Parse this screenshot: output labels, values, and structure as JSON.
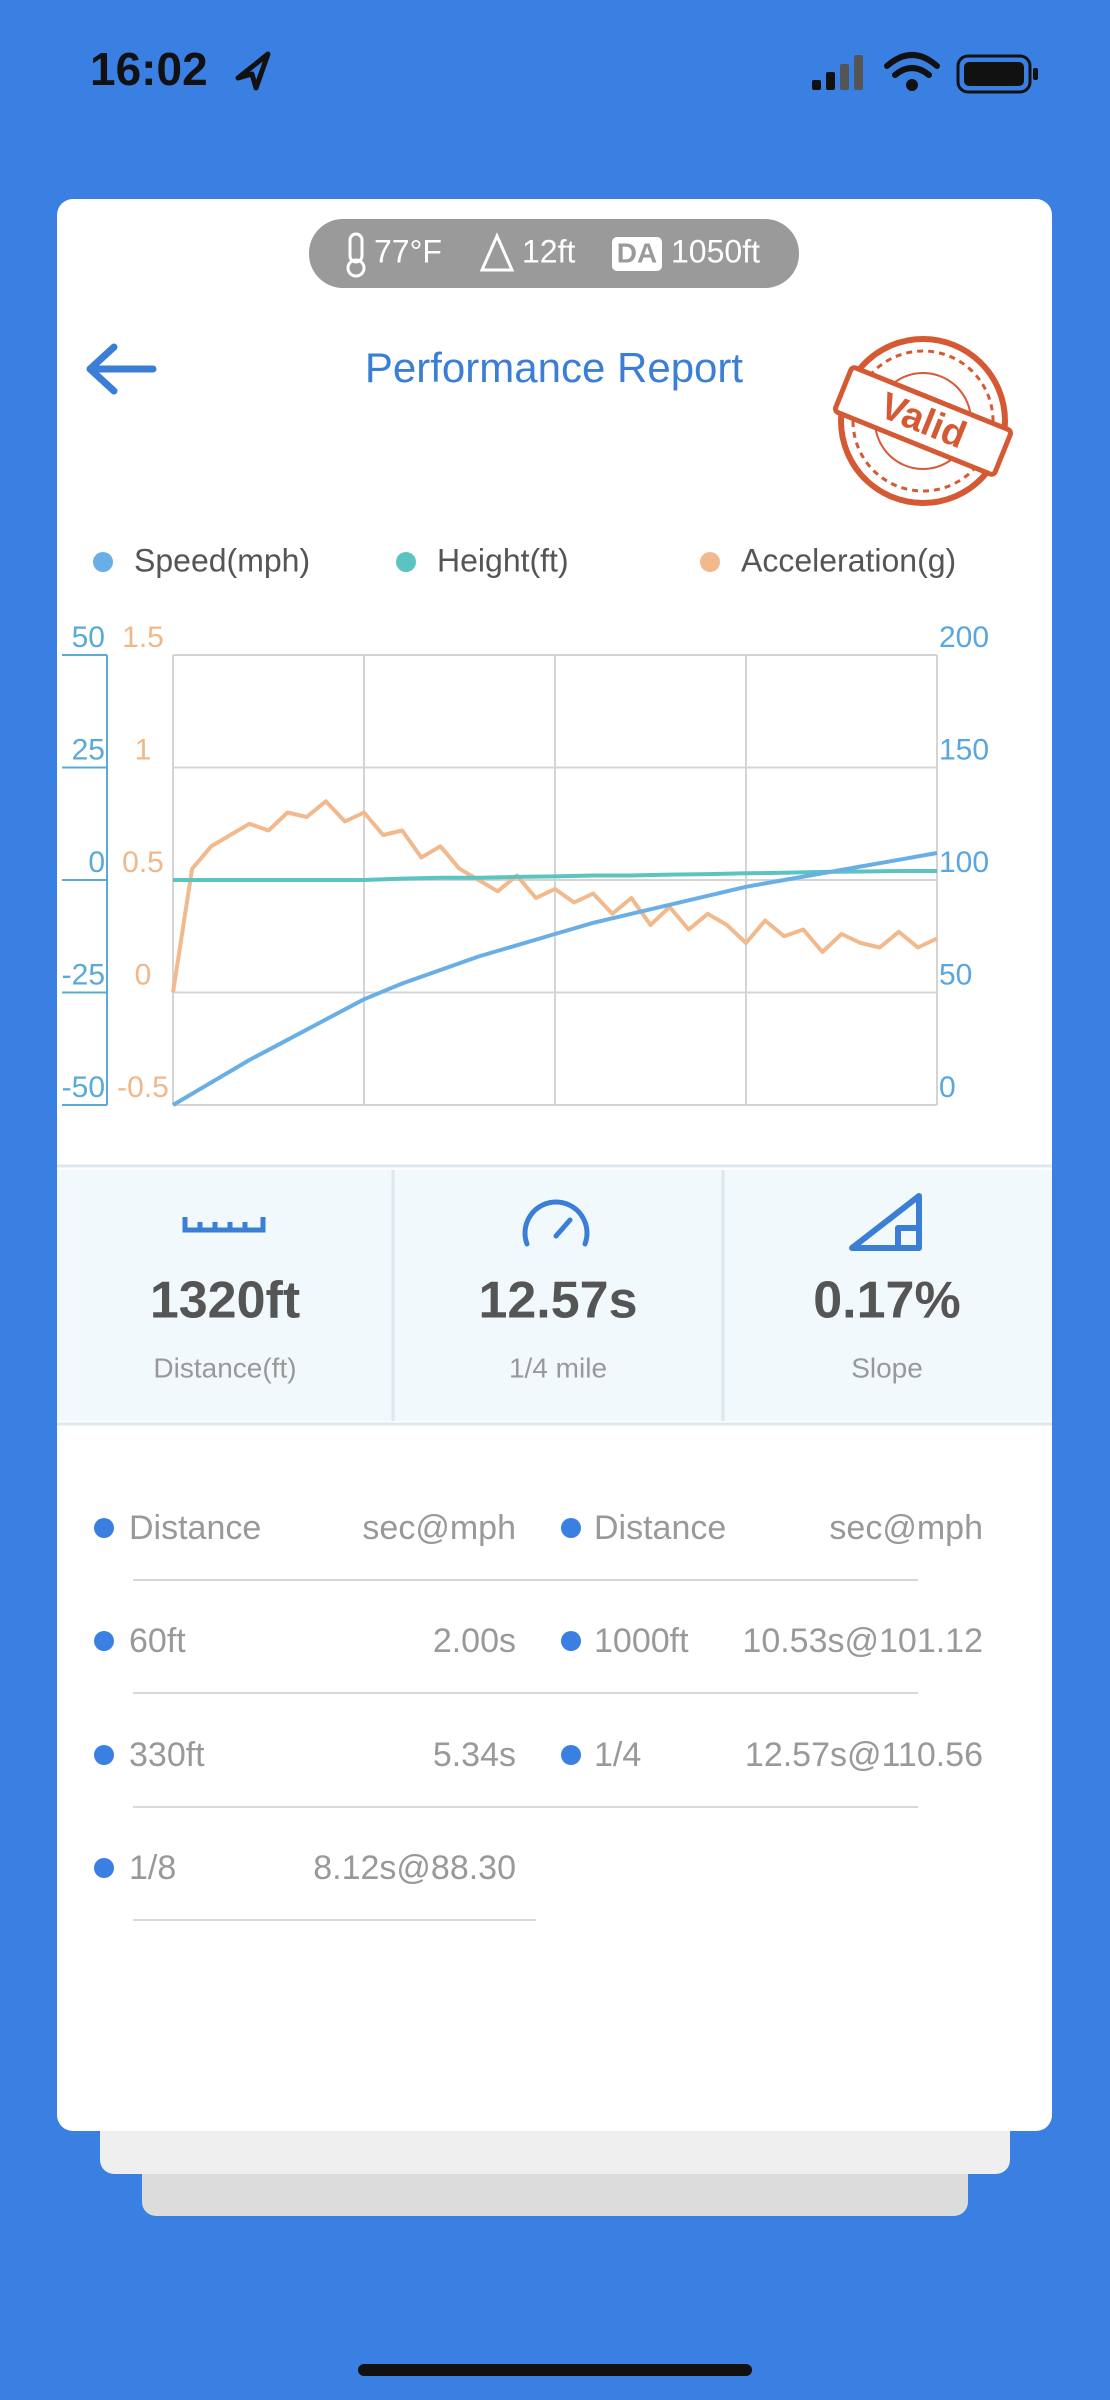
{
  "status_bar": {
    "time": "16:02"
  },
  "conditions": {
    "temperature": "77°F",
    "altitude": "12ft",
    "density_altitude_badge": "DA",
    "density_altitude": "1050ft"
  },
  "header": {
    "title": "Performance Report",
    "stamp": "Valid"
  },
  "chart_data": {
    "type": "line",
    "grid": true,
    "ylim": [
      -50,
      50
    ],
    "yticks": [
      -50,
      -25,
      0,
      25,
      50
    ],
    "y2lim": [
      0,
      200
    ],
    "y2ticks": [
      0,
      50,
      100,
      150,
      200
    ],
    "y3lim": [
      -0.5,
      1.5
    ],
    "y3ticks": [
      -0.5,
      0,
      0.5,
      1,
      1.5
    ],
    "series": [
      {
        "name": "Speed(mph)",
        "color": "#6aaee6",
        "axis": "y2",
        "values": [
          0,
          10,
          20,
          29,
          38,
          47,
          54,
          60,
          66,
          71,
          76,
          81,
          85,
          89,
          93,
          97,
          100,
          103,
          106,
          109,
          112
        ]
      },
      {
        "name": "Height(ft)",
        "color": "#5cc4c0",
        "axis": "y",
        "values": [
          0,
          0,
          0,
          0,
          0,
          0,
          0.3,
          0.5,
          0.5,
          0.7,
          0.8,
          1,
          1,
          1.2,
          1.3,
          1.5,
          1.6,
          1.8,
          1.9,
          2,
          2
        ]
      },
      {
        "name": "Acceleration(g)",
        "color": "#f2b98c",
        "axis": "y3",
        "values": [
          0,
          0.55,
          0.65,
          0.7,
          0.75,
          0.72,
          0.8,
          0.78,
          0.85,
          0.76,
          0.8,
          0.7,
          0.72,
          0.6,
          0.65,
          0.55,
          0.5,
          0.45,
          0.52,
          0.42,
          0.46,
          0.4,
          0.44,
          0.35,
          0.42,
          0.3,
          0.38,
          0.28,
          0.35,
          0.3,
          0.22,
          0.32,
          0.25,
          0.28,
          0.18,
          0.26,
          0.22,
          0.2,
          0.27,
          0.2,
          0.24
        ]
      }
    ],
    "axis_colors": {
      "y": "#5aaad6",
      "y2": "#5aa6de",
      "y3": "#f0b88a"
    }
  },
  "stats": [
    {
      "value": "1320ft",
      "label": "Distance(ft)"
    },
    {
      "value": "12.57s",
      "label": "1/4 mile"
    },
    {
      "value": "0.17%",
      "label": "Slope"
    }
  ],
  "splits": {
    "headers": [
      [
        "Distance",
        "sec@mph"
      ],
      [
        "Distance",
        "sec@mph"
      ]
    ],
    "rows": [
      [
        "60ft",
        "2.00s"
      ],
      [
        "1000ft",
        "10.53s@101.12"
      ],
      [
        "330ft",
        "5.34s"
      ],
      [
        "1/4",
        "12.57s@110.56"
      ],
      [
        "1/8",
        "8.12s@88.30"
      ]
    ]
  }
}
